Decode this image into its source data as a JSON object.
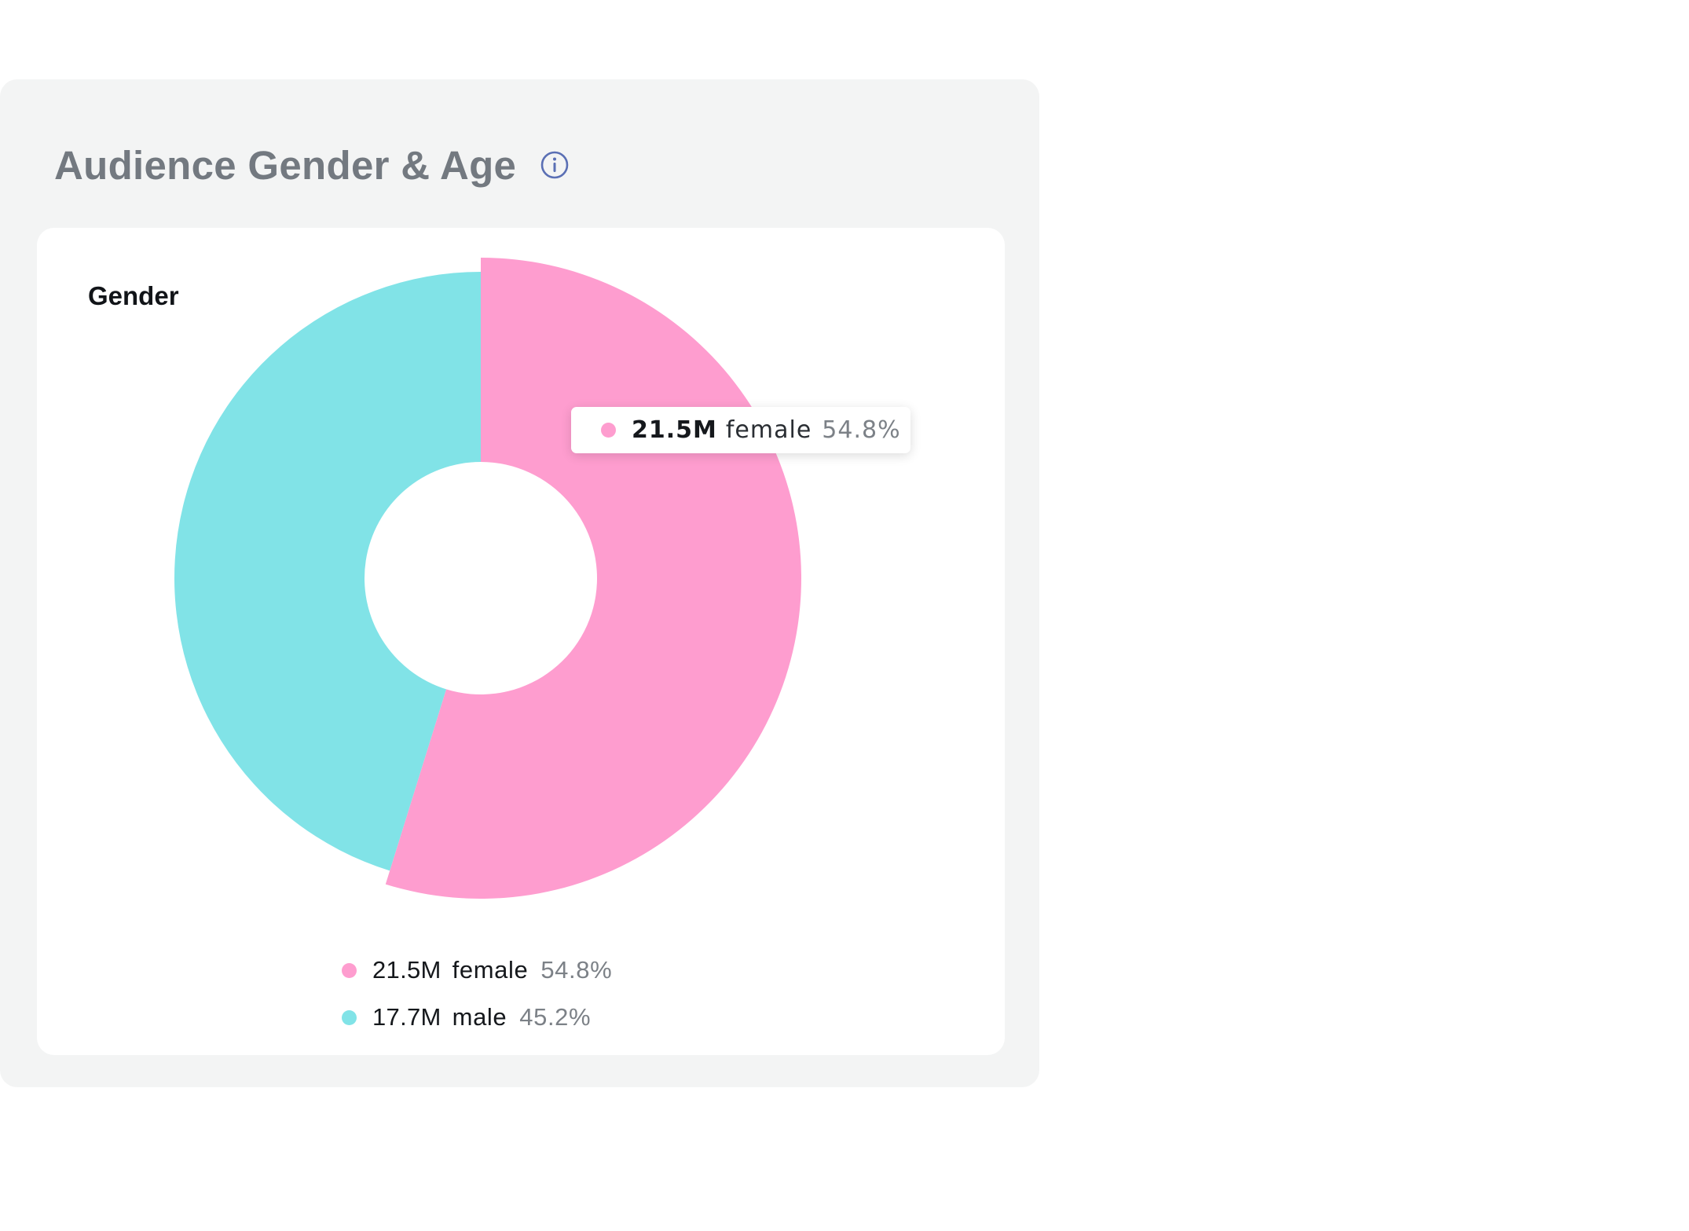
{
  "header": {
    "title": "Audience Gender & Age"
  },
  "colors": {
    "female": "#fe9dcf",
    "male": "#81e3e7",
    "info_icon": "#5a6fb4"
  },
  "icons": {
    "info": "info-circle-icon"
  },
  "tooltip": {
    "value": "21.5M",
    "label": "female",
    "percent": "54.8%"
  },
  "chart_data": {
    "type": "pie",
    "title": "Gender",
    "donut": true,
    "highlighted": "female",
    "legend_position": "bottom",
    "slices": [
      {
        "name": "female",
        "value_label": "21.5M",
        "value": 21.5,
        "percent": 54.8,
        "percent_label": "54.8%",
        "color": "#fe9dcf"
      },
      {
        "name": "male",
        "value_label": "17.7M",
        "value": 17.7,
        "percent": 45.2,
        "percent_label": "45.2%",
        "color": "#81e3e7"
      }
    ]
  }
}
